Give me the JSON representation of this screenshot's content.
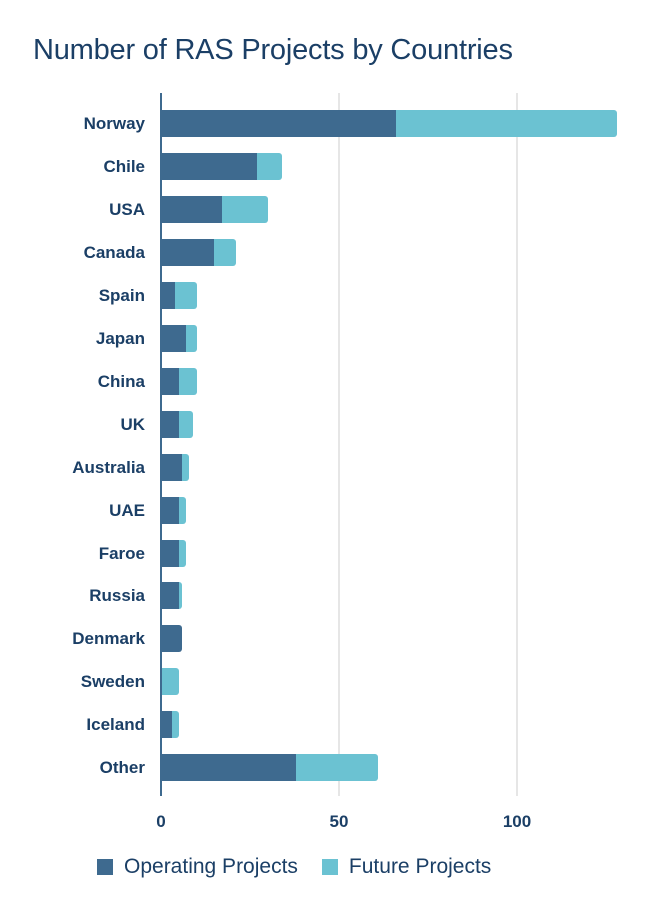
{
  "chart_data": {
    "type": "bar",
    "orientation": "horizontal",
    "stacked": true,
    "title": "Number of RAS Projects by Countries",
    "xlabel": "",
    "ylabel": "",
    "categories": [
      "Norway",
      "Chile",
      "USA",
      "Canada",
      "Spain",
      "Japan",
      "China",
      "UK",
      "Australia",
      "UAE",
      "Faroe",
      "Russia",
      "Denmark",
      "Sweden",
      "Iceland",
      "Other"
    ],
    "series": [
      {
        "name": "Operating Projects",
        "color": "#3e6a8f",
        "values": [
          66,
          27,
          17,
          15,
          4,
          7,
          5,
          5,
          6,
          5,
          5,
          5,
          6,
          0,
          3,
          38
        ]
      },
      {
        "name": "Future Projects",
        "color": "#6bc2d2",
        "values": [
          62,
          7,
          13,
          6,
          6,
          3,
          5,
          4,
          2,
          2,
          2,
          1,
          0,
          5,
          2,
          23
        ]
      }
    ],
    "xlim": [
      0,
      130
    ],
    "xticks": [
      0,
      50,
      100
    ],
    "grid": true,
    "legend_position": "bottom"
  },
  "title": "Number of RAS Projects by Countries",
  "axis": {
    "ticks": [
      "0",
      "50",
      "100"
    ]
  },
  "legend": {
    "operating": "Operating Projects",
    "future": "Future Projects"
  },
  "colors": {
    "operating": "#3e6a8f",
    "future": "#6bc2d2",
    "text": "#1b3f66"
  }
}
